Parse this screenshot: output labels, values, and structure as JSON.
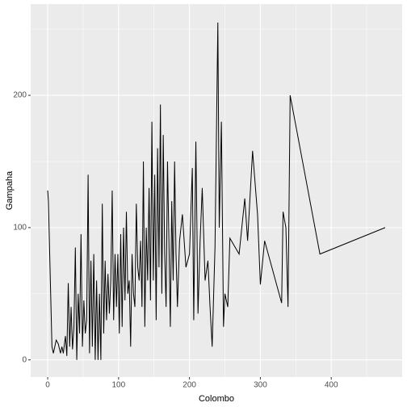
{
  "chart_data": {
    "type": "line",
    "x_label": "Colombo",
    "y_label": "Gampaha",
    "x": [
      0,
      1,
      6,
      8,
      10,
      12,
      15,
      18,
      20,
      22,
      25,
      27,
      29,
      31,
      33,
      35,
      37,
      39,
      41,
      43,
      45,
      47,
      49,
      51,
      53,
      55,
      57,
      59,
      61,
      63,
      65,
      67,
      69,
      71,
      73,
      75,
      77,
      79,
      81,
      83,
      85,
      87,
      89,
      91,
      93,
      95,
      97,
      99,
      101,
      103,
      105,
      107,
      109,
      111,
      113,
      115,
      117,
      119,
      121,
      123,
      125,
      127,
      129,
      131,
      133,
      135,
      137,
      139,
      141,
      143,
      145,
      147,
      149,
      151,
      153,
      155,
      157,
      159,
      161,
      163,
      165,
      167,
      169,
      171,
      173,
      175,
      177,
      179,
      181,
      183,
      186,
      190,
      195,
      200,
      204,
      206,
      209,
      212,
      215,
      218,
      222,
      226,
      229,
      232,
      236,
      240,
      242,
      245,
      248,
      250,
      254,
      257,
      270,
      278,
      282,
      289,
      296,
      300,
      306,
      330,
      332,
      336,
      339,
      342,
      384,
      476
    ],
    "series": [
      {
        "name": "Gampaha",
        "color": "#000000",
        "values": [
          128,
          120,
          10,
          5,
          10,
          15,
          12,
          5,
          10,
          5,
          18,
          3,
          58,
          10,
          40,
          8,
          25,
          85,
          0,
          50,
          20,
          95,
          10,
          45,
          20,
          30,
          140,
          5,
          75,
          10,
          80,
          0,
          60,
          0,
          50,
          0,
          118,
          20,
          75,
          30,
          65,
          35,
          60,
          128,
          30,
          80,
          40,
          80,
          20,
          95,
          25,
          100,
          45,
          112,
          50,
          60,
          10,
          80,
          50,
          40,
          118,
          70,
          60,
          90,
          40,
          150,
          25,
          100,
          60,
          130,
          45,
          180,
          60,
          140,
          30,
          160,
          70,
          193,
          50,
          170,
          80,
          40,
          150,
          90,
          25,
          120,
          60,
          150,
          80,
          40,
          90,
          110,
          70,
          80,
          145,
          30,
          165,
          35,
          90,
          130,
          60,
          75,
          40,
          10,
          85,
          255,
          100,
          180,
          25,
          50,
          40,
          92,
          80,
          122,
          90,
          158,
          110,
          57,
          90,
          43,
          112,
          100,
          40,
          200,
          80,
          100
        ]
      }
    ],
    "xlim": [
      -24,
      500
    ],
    "ylim": [
      -13,
      269
    ],
    "xticks": [
      0,
      100,
      200,
      300,
      400
    ],
    "yticks": [
      0,
      100,
      200
    ],
    "x_minor_ticks": [
      50,
      150,
      250,
      350,
      450
    ],
    "y_minor_ticks": [
      50,
      150,
      250
    ],
    "grid": true,
    "panel_color": "#EBEBEB"
  }
}
